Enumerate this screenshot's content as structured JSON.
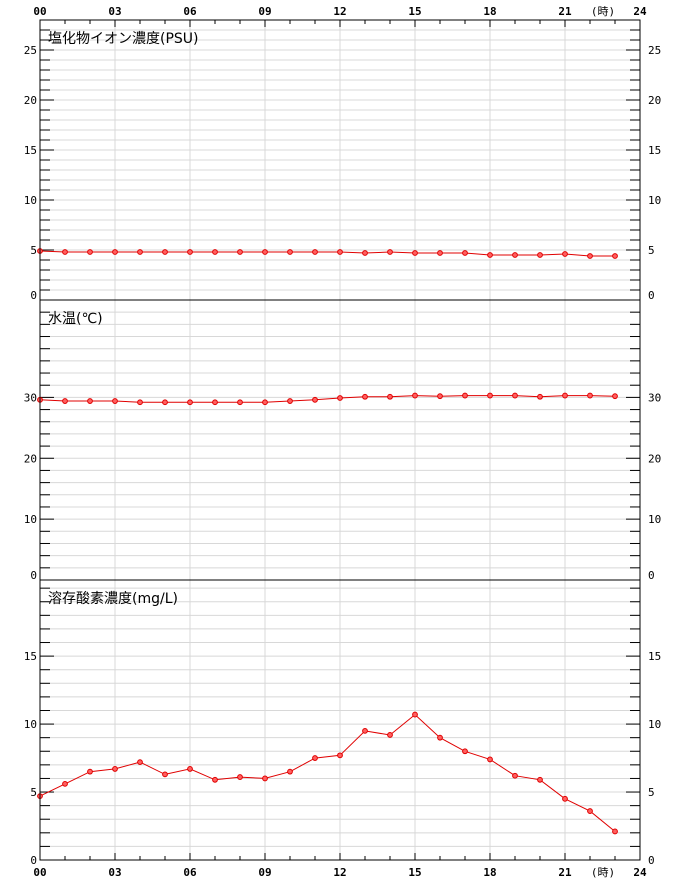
{
  "hour_unit": "(時)",
  "x_ticks": [
    "00",
    "03",
    "06",
    "09",
    "12",
    "15",
    "18",
    "21",
    "24"
  ],
  "colors": {
    "series": "#e00000",
    "marker_fill": "#ff6060",
    "grid": "#d8d8d8",
    "axis": "#000000"
  },
  "chart_data": [
    {
      "type": "line",
      "title": "塩化物イオン濃度(PSU)",
      "x": [
        0,
        1,
        2,
        3,
        4,
        5,
        6,
        7,
        8,
        9,
        10,
        11,
        12,
        13,
        14,
        15,
        16,
        17,
        18,
        19,
        20,
        21,
        22,
        23
      ],
      "series": [
        {
          "values": [
            4.9,
            4.8,
            4.8,
            4.8,
            4.8,
            4.8,
            4.8,
            4.8,
            4.8,
            4.8,
            4.8,
            4.8,
            4.8,
            4.7,
            4.8,
            4.7,
            4.7,
            4.7,
            4.5,
            4.5,
            4.5,
            4.6,
            4.4,
            4.4
          ]
        }
      ],
      "xlim": [
        0,
        24
      ],
      "ylim": [
        0,
        28
      ],
      "yticks": [
        0,
        5,
        10,
        15,
        20,
        25
      ],
      "xlabel": "",
      "ylabel": "",
      "grid": true
    },
    {
      "type": "line",
      "title": "水温(℃)",
      "x": [
        0,
        1,
        2,
        3,
        4,
        5,
        6,
        7,
        8,
        9,
        10,
        11,
        12,
        13,
        14,
        15,
        16,
        17,
        18,
        19,
        20,
        21,
        22,
        23
      ],
      "series": [
        {
          "values": [
            29.6,
            29.4,
            29.4,
            29.4,
            29.2,
            29.2,
            29.2,
            29.2,
            29.2,
            29.2,
            29.4,
            29.6,
            29.9,
            30.1,
            30.1,
            30.3,
            30.2,
            30.3,
            30.3,
            30.3,
            30.1,
            30.3,
            30.3,
            30.2
          ]
        }
      ],
      "xlim": [
        0,
        24
      ],
      "ylim": [
        0,
        46
      ],
      "yticks": [
        0,
        10,
        20,
        30
      ],
      "xlabel": "",
      "ylabel": "",
      "grid": true
    },
    {
      "type": "line",
      "title": "溶存酸素濃度(mg/L)",
      "x": [
        0,
        1,
        2,
        3,
        4,
        5,
        6,
        7,
        8,
        9,
        10,
        11,
        12,
        13,
        14,
        15,
        16,
        17,
        18,
        19,
        20,
        21,
        22,
        23
      ],
      "series": [
        {
          "values": [
            4.7,
            5.6,
            6.5,
            6.7,
            7.2,
            6.3,
            6.7,
            5.9,
            6.1,
            6.0,
            6.5,
            7.5,
            7.7,
            9.5,
            9.2,
            10.7,
            9.0,
            8.0,
            7.4,
            6.2,
            5.9,
            4.5,
            3.6,
            2.1
          ]
        }
      ],
      "xlim": [
        0,
        24
      ],
      "ylim": [
        0,
        20.6
      ],
      "yticks": [
        0,
        5,
        10,
        15
      ],
      "xlabel": "",
      "ylabel": "",
      "grid": true
    }
  ]
}
